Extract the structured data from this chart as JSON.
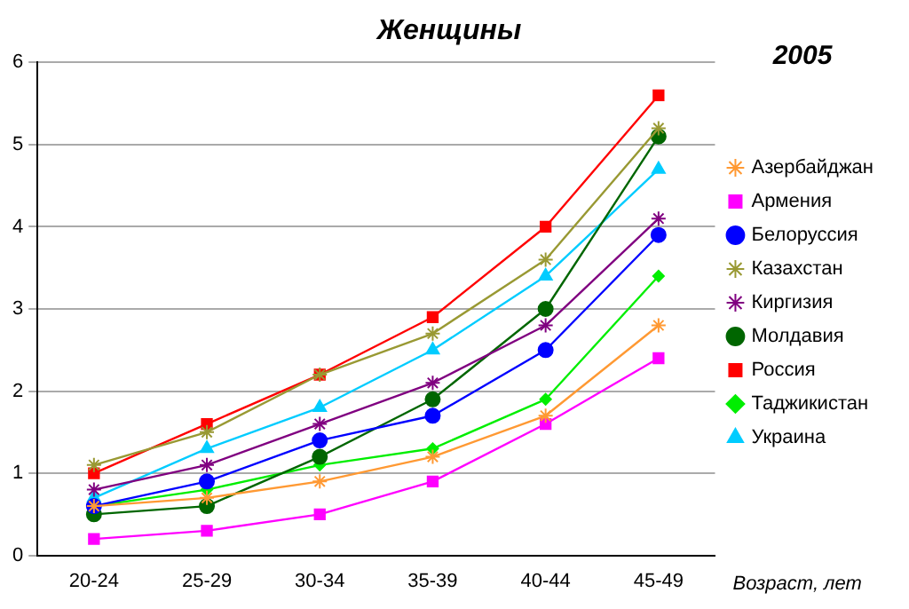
{
  "chart_data": {
    "type": "line",
    "title": "Женщины",
    "xlabel": "Возраст, лет",
    "annotations": [
      "2005"
    ],
    "categories": [
      "20-24",
      "25-29",
      "30-34",
      "35-39",
      "40-44",
      "45-49"
    ],
    "ylim": [
      0,
      6
    ],
    "yticks": [
      0,
      1,
      2,
      3,
      4,
      5,
      6
    ],
    "grid": "y",
    "legend": "right",
    "series": [
      {
        "name": "Азербайджан",
        "color": "#ff9933",
        "marker": "cross",
        "values": [
          0.6,
          0.7,
          0.9,
          1.2,
          1.7,
          2.8
        ]
      },
      {
        "name": "Армения",
        "color": "#ff00ff",
        "marker": "square",
        "values": [
          0.2,
          0.3,
          0.5,
          0.9,
          1.6,
          2.4
        ]
      },
      {
        "name": "Белоруссия",
        "color": "#0000ff",
        "marker": "circle",
        "values": [
          0.6,
          0.9,
          1.4,
          1.7,
          2.5,
          3.9
        ]
      },
      {
        "name": "Казахстан",
        "color": "#999933",
        "marker": "cross",
        "values": [
          1.1,
          1.5,
          2.2,
          2.7,
          3.6,
          5.2
        ]
      },
      {
        "name": "Киргизия",
        "color": "#800080",
        "marker": "cross",
        "values": [
          0.8,
          1.1,
          1.6,
          2.1,
          2.8,
          4.1
        ]
      },
      {
        "name": "Молдавия",
        "color": "#006600",
        "marker": "circle",
        "values": [
          0.5,
          0.6,
          1.2,
          1.9,
          3.0,
          5.1
        ]
      },
      {
        "name": "Россия",
        "color": "#ff0000",
        "marker": "square",
        "values": [
          1.0,
          1.6,
          2.2,
          2.9,
          4.0,
          5.6
        ]
      },
      {
        "name": "Таджикистан",
        "color": "#00ee00",
        "marker": "diamond",
        "values": [
          0.6,
          0.8,
          1.1,
          1.3,
          1.9,
          3.4
        ]
      },
      {
        "name": "Украина",
        "color": "#00ccff",
        "marker": "triangle",
        "values": [
          0.7,
          1.3,
          1.8,
          2.5,
          3.4,
          4.7
        ]
      }
    ]
  }
}
